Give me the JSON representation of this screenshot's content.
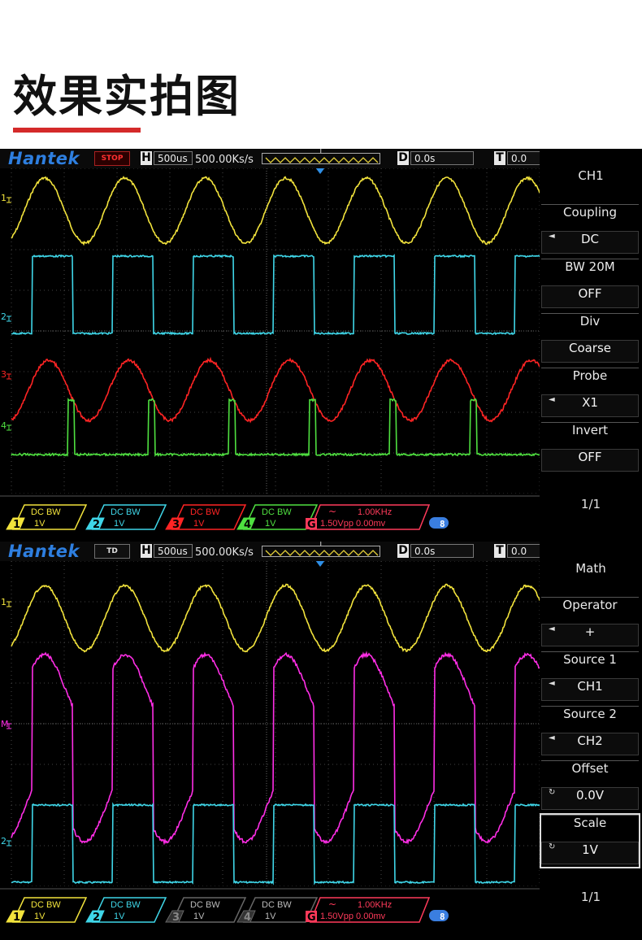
{
  "page_title": "效果实拍图",
  "accent_color": "#d42a2a",
  "scopes": [
    {
      "brand": "Hantek",
      "status": "STOP",
      "horizontal_label": "H",
      "timebase": "500us",
      "sample_rate": "500.00Ks/s",
      "trigger_marker": "T",
      "delay_label": "D",
      "delay": "0.0s",
      "trigger_label": "T",
      "trigger_level": "0.0",
      "traces": [
        {
          "type": "sine",
          "color": "#f2e33c",
          "label": "1"
        },
        {
          "type": "square",
          "color": "#3fd6e8",
          "label": "2"
        },
        {
          "type": "sine",
          "color": "#ff2424",
          "label": "3"
        },
        {
          "type": "pulse",
          "color": "#4fe040",
          "label": "4"
        }
      ],
      "menu": {
        "title": "CH1",
        "items": [
          {
            "label": "Coupling",
            "value": "DC",
            "arrow": "◄"
          },
          {
            "label": "BW 20M",
            "value": "OFF",
            "arrow": ""
          },
          {
            "label": "Div",
            "value": "Coarse",
            "arrow": ""
          },
          {
            "label": "Probe",
            "value": "X1",
            "arrow": "◄"
          },
          {
            "label": "Invert",
            "value": "OFF",
            "arrow": ""
          }
        ],
        "page": "1/1"
      },
      "channels": [
        {
          "num": "1",
          "coupling": "DC",
          "bw": "BW",
          "volts": "1V",
          "color": "#f2e33c",
          "active": true
        },
        {
          "num": "2",
          "coupling": "DC",
          "bw": "BW",
          "volts": "1V",
          "color": "#3fd6e8",
          "active": true
        },
        {
          "num": "3",
          "coupling": "DC",
          "bw": "BW",
          "volts": "1V",
          "color": "#ff2424",
          "active": true
        },
        {
          "num": "4",
          "coupling": "DC",
          "bw": "BW",
          "volts": "1V",
          "color": "#4fe040",
          "active": true
        }
      ],
      "generator": {
        "label": "G",
        "wave": "~",
        "freq": "1.00KHz",
        "amp": "1.50Vpp 0.00mv",
        "color": "#ff3a5a"
      }
    },
    {
      "brand": "Hantek",
      "status": "TD",
      "horizontal_label": "H",
      "timebase": "500us",
      "sample_rate": "500.00Ks/s",
      "trigger_marker": "T",
      "delay_label": "D",
      "delay": "0.0s",
      "trigger_label": "T",
      "trigger_level": "0.0",
      "traces": [
        {
          "type": "sine",
          "color": "#f2e33c",
          "label": "1"
        },
        {
          "type": "math",
          "color": "#ff2ee6",
          "label": "M"
        },
        {
          "type": "square",
          "color": "#3fd6e8",
          "label": "2"
        }
      ],
      "menu": {
        "title": "Math",
        "items": [
          {
            "label": "Operator",
            "value": "+",
            "arrow": "◄"
          },
          {
            "label": "Source 1",
            "value": "CH1",
            "arrow": "◄"
          },
          {
            "label": "Source 2",
            "value": "CH2",
            "arrow": "◄"
          },
          {
            "label": "Offset",
            "value": "0.0V",
            "arrow": "↻"
          },
          {
            "label": "Scale",
            "value": "1V",
            "arrow": "↻"
          }
        ],
        "page": "1/1"
      },
      "channels": [
        {
          "num": "1",
          "coupling": "DC",
          "bw": "BW",
          "volts": "1V",
          "color": "#f2e33c",
          "active": true
        },
        {
          "num": "2",
          "coupling": "DC",
          "bw": "BW",
          "volts": "1V",
          "color": "#3fd6e8",
          "active": true
        },
        {
          "num": "3",
          "coupling": "DC",
          "bw": "BW",
          "volts": "1V",
          "color": "#666666",
          "active": false
        },
        {
          "num": "4",
          "coupling": "DC",
          "bw": "BW",
          "volts": "1V",
          "color": "#666666",
          "active": false
        }
      ],
      "generator": {
        "label": "G",
        "wave": "~",
        "freq": "1.00KHz",
        "amp": "1.50Vpp 0.00mv",
        "color": "#ff3a5a"
      }
    }
  ]
}
